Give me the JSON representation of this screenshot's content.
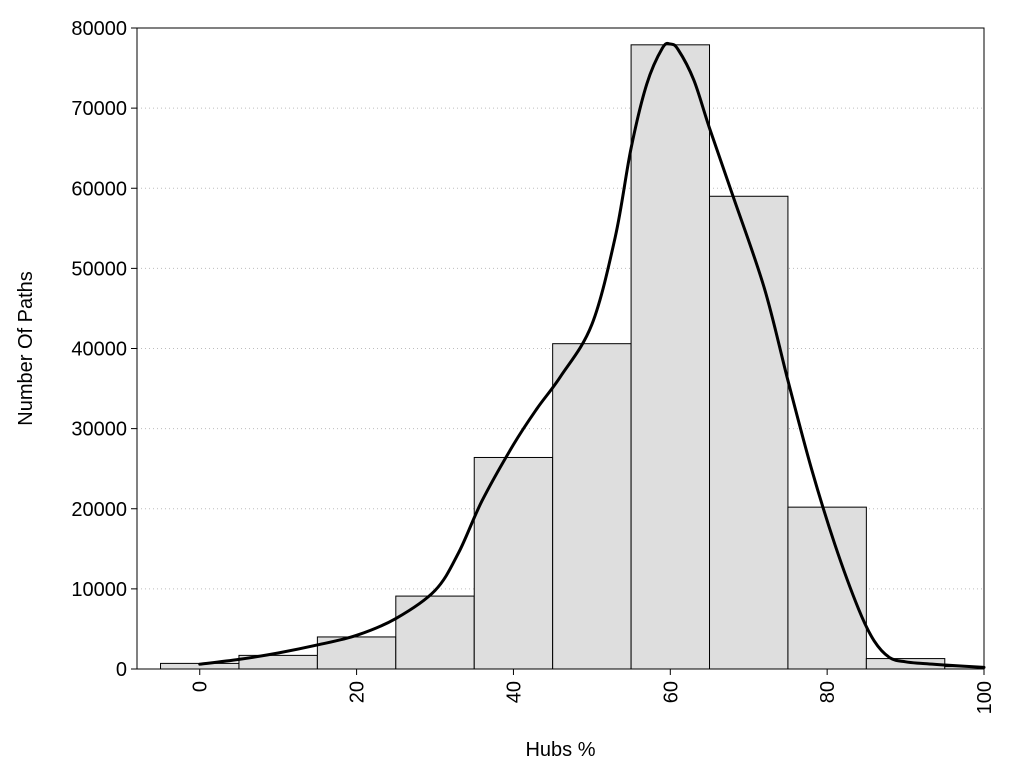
{
  "chart_data": {
    "type": "bar",
    "title": "",
    "xlabel": "Hubs %",
    "ylabel": "Number Of Paths",
    "xlim": [
      -8,
      100
    ],
    "ylim": [
      0,
      80000
    ],
    "grid": "horizontal dotted",
    "legend": "none",
    "x_ticks": [
      0,
      20,
      40,
      60,
      80,
      100
    ],
    "y_ticks": [
      0,
      10000,
      20000,
      30000,
      40000,
      50000,
      60000,
      70000,
      80000
    ],
    "bin_width": 10,
    "bins": [
      {
        "center": 0,
        "value": 700
      },
      {
        "center": 10,
        "value": 1700
      },
      {
        "center": 20,
        "value": 4000
      },
      {
        "center": 30,
        "value": 9100
      },
      {
        "center": 40,
        "value": 26400
      },
      {
        "center": 50,
        "value": 40600
      },
      {
        "center": 60,
        "value": 77900
      },
      {
        "center": 70,
        "value": 59000
      },
      {
        "center": 80,
        "value": 20200
      },
      {
        "center": 90,
        "value": 1300
      },
      {
        "center": 100,
        "value": 300
      }
    ],
    "density_curve": {
      "x": [
        0,
        5,
        10,
        15,
        20,
        25,
        30,
        33,
        36,
        40,
        43,
        46,
        50,
        53,
        55,
        57,
        59,
        60,
        61,
        63,
        65,
        68,
        72,
        75,
        78,
        81,
        84,
        86,
        88,
        90,
        92,
        95,
        100
      ],
      "y": [
        600,
        1200,
        2000,
        3000,
        4200,
        6300,
        9800,
        14500,
        21000,
        28000,
        32500,
        36500,
        43000,
        54000,
        65000,
        73000,
        77500,
        78000,
        77300,
        73500,
        67500,
        59000,
        47500,
        36000,
        25000,
        15500,
        7500,
        3500,
        1400,
        900,
        700,
        500,
        200
      ]
    },
    "colors": {
      "bar_fill": "#dedede",
      "bar_stroke": "#000000",
      "curve": "#000000",
      "grid": "#bdbdbd",
      "background": "#ffffff"
    }
  }
}
